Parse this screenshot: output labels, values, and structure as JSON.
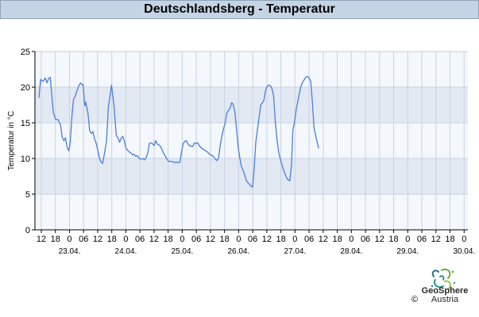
{
  "chart_data": {
    "type": "line",
    "title": "Deutschlandsberg - Temperatur",
    "ylabel": "Temperatur in °C",
    "xlabel": "",
    "ylim": [
      0,
      25
    ],
    "yticks": [
      0,
      5,
      10,
      15,
      20,
      25
    ],
    "x_start_hour": 11,
    "x_end_hour": 180,
    "hour_ticks": [
      {
        "h": 12,
        "label": "12"
      },
      {
        "h": 18,
        "label": "18"
      },
      {
        "h": 24,
        "label": "0"
      },
      {
        "h": 30,
        "label": "06"
      },
      {
        "h": 36,
        "label": "12"
      },
      {
        "h": 42,
        "label": "18"
      },
      {
        "h": 48,
        "label": "0"
      },
      {
        "h": 54,
        "label": "06"
      },
      {
        "h": 60,
        "label": "12"
      },
      {
        "h": 66,
        "label": "18"
      },
      {
        "h": 72,
        "label": "0"
      },
      {
        "h": 78,
        "label": "06"
      },
      {
        "h": 84,
        "label": "12"
      },
      {
        "h": 90,
        "label": "18"
      },
      {
        "h": 96,
        "label": "0"
      },
      {
        "h": 102,
        "label": "06"
      },
      {
        "h": 108,
        "label": "12"
      },
      {
        "h": 114,
        "label": "18"
      },
      {
        "h": 120,
        "label": "0"
      },
      {
        "h": 126,
        "label": "06"
      },
      {
        "h": 132,
        "label": "12"
      },
      {
        "h": 138,
        "label": "18"
      },
      {
        "h": 144,
        "label": "0"
      },
      {
        "h": 150,
        "label": "06"
      },
      {
        "h": 156,
        "label": "12"
      },
      {
        "h": 162,
        "label": "18"
      },
      {
        "h": 168,
        "label": "0"
      },
      {
        "h": 174,
        "label": "06"
      },
      {
        "h": 180,
        "label": "12"
      },
      {
        "h": 186,
        "label": "18"
      },
      {
        "h": 192,
        "label": "0"
      }
    ],
    "date_labels": [
      {
        "h": 24,
        "label": "23.04."
      },
      {
        "h": 48,
        "label": "24.04."
      },
      {
        "h": 72,
        "label": "25.04."
      },
      {
        "h": 96,
        "label": "26.04."
      },
      {
        "h": 120,
        "label": "27.04."
      },
      {
        "h": 144,
        "label": "28.04."
      },
      {
        "h": 168,
        "label": "29.04."
      },
      {
        "h": 192,
        "label": "30.04."
      }
    ],
    "grid": true,
    "series": [
      {
        "color": "#4a7fd8",
        "points": [
          [
            11,
            18.5
          ],
          [
            11.7,
            21.1
          ],
          [
            12.7,
            20.8
          ],
          [
            13.7,
            21.3
          ],
          [
            14.4,
            20.6
          ],
          [
            15.1,
            21.2
          ],
          [
            15.8,
            21.4
          ],
          [
            17.1,
            16.5
          ],
          [
            18.1,
            15.5
          ],
          [
            19.2,
            15.4
          ],
          [
            20.2,
            14.7
          ],
          [
            20.9,
            13.0
          ],
          [
            21.6,
            12.5
          ],
          [
            22.3,
            12.9
          ],
          [
            23.0,
            11.6
          ],
          [
            23.7,
            11.1
          ],
          [
            24.3,
            12.2
          ],
          [
            25.0,
            15.7
          ],
          [
            25.7,
            18.3
          ],
          [
            26.4,
            18.7
          ],
          [
            27.1,
            19.4
          ],
          [
            28.1,
            20.3
          ],
          [
            28.8,
            20.6
          ],
          [
            29.5,
            20.3
          ],
          [
            29.8,
            20.4
          ],
          [
            30.5,
            17.4
          ],
          [
            30.9,
            17.9
          ],
          [
            31.9,
            16.3
          ],
          [
            32.6,
            13.9
          ],
          [
            33.3,
            13.5
          ],
          [
            34.0,
            13.8
          ],
          [
            34.7,
            12.7
          ],
          [
            35.4,
            12.1
          ],
          [
            36.0,
            11.2
          ],
          [
            36.7,
            10.2
          ],
          [
            37.4,
            9.5
          ],
          [
            38.1,
            9.3
          ],
          [
            38.8,
            10.5
          ],
          [
            39.8,
            12.5
          ],
          [
            40.5,
            17.1
          ],
          [
            41.5,
            19.3
          ],
          [
            41.9,
            20.3
          ],
          [
            42.9,
            17.5
          ],
          [
            43.9,
            13.3
          ],
          [
            44.6,
            12.9
          ],
          [
            45.3,
            12.3
          ],
          [
            46.0,
            12.8
          ],
          [
            46.7,
            13.1
          ],
          [
            47.4,
            12.4
          ],
          [
            48.0,
            11.5
          ],
          [
            49.1,
            11.0
          ],
          [
            50.1,
            10.8
          ],
          [
            50.8,
            10.5
          ],
          [
            51.5,
            10.6
          ],
          [
            52.2,
            10.3
          ],
          [
            52.9,
            10.4
          ],
          [
            53.5,
            10.1
          ],
          [
            54.2,
            9.9
          ],
          [
            55.2,
            10.0
          ],
          [
            55.9,
            9.8
          ],
          [
            56.6,
            10.1
          ],
          [
            57.3,
            10.7
          ],
          [
            58.0,
            12.1
          ],
          [
            58.7,
            12.2
          ],
          [
            59.3,
            12.1
          ],
          [
            60.0,
            11.8
          ],
          [
            60.7,
            12.5
          ],
          [
            61.4,
            12.0
          ],
          [
            62.1,
            11.9
          ],
          [
            62.8,
            11.7
          ],
          [
            63.4,
            11.2
          ],
          [
            64.1,
            10.7
          ],
          [
            64.8,
            10.3
          ],
          [
            65.5,
            9.9
          ],
          [
            66.2,
            9.6
          ],
          [
            66.9,
            9.6
          ],
          [
            67.6,
            9.6
          ],
          [
            68.3,
            9.5
          ],
          [
            69.0,
            9.4
          ],
          [
            69.6,
            9.5
          ],
          [
            70.3,
            9.4
          ],
          [
            71.0,
            9.5
          ],
          [
            71.7,
            10.9
          ],
          [
            72.4,
            12.1
          ],
          [
            73.1,
            12.4
          ],
          [
            73.8,
            12.5
          ],
          [
            74.5,
            12.0
          ],
          [
            75.1,
            11.8
          ],
          [
            75.8,
            11.7
          ],
          [
            76.5,
            11.7
          ],
          [
            77.2,
            12.2
          ],
          [
            77.9,
            12.1
          ],
          [
            78.6,
            12.2
          ],
          [
            79.3,
            11.8
          ],
          [
            80.0,
            11.5
          ],
          [
            80.6,
            11.4
          ],
          [
            81.3,
            11.2
          ],
          [
            82.0,
            11.1
          ],
          [
            82.7,
            10.9
          ],
          [
            83.4,
            10.7
          ],
          [
            84.1,
            10.5
          ],
          [
            84.8,
            10.4
          ],
          [
            85.5,
            10.2
          ],
          [
            86.1,
            9.9
          ],
          [
            86.8,
            9.7
          ],
          [
            87.5,
            10.1
          ],
          [
            88.2,
            11.9
          ],
          [
            88.9,
            13.2
          ],
          [
            89.6,
            14.2
          ],
          [
            90.3,
            15.0
          ],
          [
            91.0,
            16.4
          ],
          [
            91.6,
            16.7
          ],
          [
            92.3,
            17.0
          ],
          [
            93.0,
            17.8
          ],
          [
            93.7,
            17.6
          ],
          [
            94.4,
            16.5
          ],
          [
            95.1,
            14.2
          ],
          [
            95.8,
            11.6
          ],
          [
            96.5,
            10.1
          ],
          [
            97.1,
            9.0
          ],
          [
            97.8,
            8.4
          ],
          [
            98.5,
            7.8
          ],
          [
            99.2,
            7.0
          ],
          [
            99.9,
            6.6
          ],
          [
            100.6,
            6.4
          ],
          [
            101.3,
            6.1
          ],
          [
            102.0,
            6.0
          ],
          [
            102.6,
            8.5
          ],
          [
            103.3,
            12.3
          ],
          [
            104.0,
            14.0
          ],
          [
            104.7,
            15.7
          ],
          [
            105.4,
            17.5
          ],
          [
            106.1,
            17.8
          ],
          [
            106.8,
            18.2
          ],
          [
            107.5,
            19.6
          ],
          [
            108.1,
            20.1
          ],
          [
            108.8,
            20.3
          ],
          [
            109.5,
            20.2
          ],
          [
            110.2,
            19.8
          ],
          [
            110.9,
            18.8
          ],
          [
            111.6,
            15.3
          ],
          [
            112.3,
            12.8
          ],
          [
            113.0,
            11.0
          ],
          [
            113.6,
            10.1
          ],
          [
            114.3,
            9.3
          ],
          [
            115.0,
            8.5
          ],
          [
            115.7,
            7.9
          ],
          [
            116.4,
            7.3
          ],
          [
            117.1,
            7.0
          ],
          [
            117.8,
            6.9
          ],
          [
            118.5,
            9.0
          ],
          [
            119.1,
            14.0
          ],
          [
            119.8,
            15.1
          ],
          [
            120.5,
            16.8
          ],
          [
            121.2,
            18.0
          ],
          [
            121.9,
            19.2
          ],
          [
            122.6,
            20.2
          ],
          [
            123.3,
            20.7
          ],
          [
            124.0,
            21.1
          ],
          [
            124.6,
            21.4
          ],
          [
            125.3,
            21.5
          ],
          [
            126.0,
            21.3
          ],
          [
            126.7,
            20.8
          ],
          [
            127.4,
            18.0
          ],
          [
            128.1,
            14.3
          ],
          [
            128.8,
            13.2
          ],
          [
            129.5,
            12.2
          ],
          [
            130.1,
            11.4
          ]
        ]
      }
    ]
  },
  "logo": {
    "name": "GeoSphere",
    "subname": "Austria",
    "copyright": "©",
    "icon": "geosphere-logo"
  }
}
